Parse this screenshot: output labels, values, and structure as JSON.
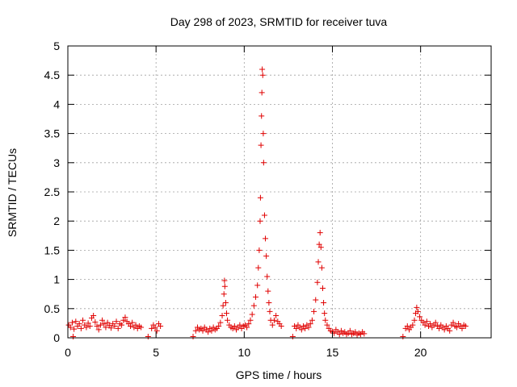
{
  "chart_data": {
    "type": "scatter",
    "title": "Day 298 of 2023, SRMTID for receiver tuva",
    "xlabel": "GPS time / hours",
    "ylabel": "SRMTID / TECUs",
    "xlim": [
      0,
      24
    ],
    "ylim": [
      0,
      5
    ],
    "x_ticks": [
      0,
      5,
      10,
      15,
      20
    ],
    "x_tick_labels": [
      "0",
      "5",
      "10",
      "15",
      "20"
    ],
    "y_ticks": [
      0,
      0.5,
      1,
      1.5,
      2,
      2.5,
      3,
      3.5,
      4,
      4.5,
      5
    ],
    "y_tick_labels": [
      "0",
      "0.5",
      "1",
      "1.5",
      "2",
      "2.5",
      "3",
      "3.5",
      "4",
      "4.5",
      "5"
    ],
    "grid": true,
    "marker": "+",
    "color": "#e00000",
    "series": [
      {
        "name": "SRMTID",
        "points": [
          [
            0.05,
            0.22
          ],
          [
            0.15,
            0.18
          ],
          [
            0.25,
            0.26
          ],
          [
            0.3,
            0.02
          ],
          [
            0.35,
            0.15
          ],
          [
            0.45,
            0.28
          ],
          [
            0.55,
            0.2
          ],
          [
            0.65,
            0.24
          ],
          [
            0.75,
            0.16
          ],
          [
            0.85,
            0.3
          ],
          [
            0.95,
            0.22
          ],
          [
            1.05,
            0.18
          ],
          [
            1.15,
            0.25
          ],
          [
            1.25,
            0.2
          ],
          [
            1.35,
            0.34
          ],
          [
            1.45,
            0.38
          ],
          [
            1.55,
            0.27
          ],
          [
            1.65,
            0.2
          ],
          [
            1.75,
            0.14
          ],
          [
            1.85,
            0.22
          ],
          [
            1.95,
            0.3
          ],
          [
            2.05,
            0.24
          ],
          [
            2.15,
            0.18
          ],
          [
            2.25,
            0.26
          ],
          [
            2.35,
            0.21
          ],
          [
            2.45,
            0.17
          ],
          [
            2.55,
            0.24
          ],
          [
            2.65,
            0.2
          ],
          [
            2.75,
            0.28
          ],
          [
            2.85,
            0.16
          ],
          [
            2.95,
            0.24
          ],
          [
            3.05,
            0.22
          ],
          [
            3.15,
            0.3
          ],
          [
            3.25,
            0.35
          ],
          [
            3.35,
            0.28
          ],
          [
            3.45,
            0.24
          ],
          [
            3.55,
            0.2
          ],
          [
            3.65,
            0.26
          ],
          [
            3.75,
            0.18
          ],
          [
            3.85,
            0.22
          ],
          [
            3.95,
            0.16
          ],
          [
            4.05,
            0.2
          ],
          [
            4.15,
            0.18
          ],
          [
            4.55,
            0.02
          ],
          [
            4.75,
            0.16
          ],
          [
            4.85,
            0.22
          ],
          [
            4.95,
            0.18
          ],
          [
            5.05,
            0.12
          ],
          [
            5.15,
            0.24
          ],
          [
            5.25,
            0.2
          ],
          [
            7.1,
            0.02
          ],
          [
            7.25,
            0.12
          ],
          [
            7.35,
            0.18
          ],
          [
            7.45,
            0.14
          ],
          [
            7.55,
            0.16
          ],
          [
            7.65,
            0.12
          ],
          [
            7.75,
            0.18
          ],
          [
            7.85,
            0.14
          ],
          [
            7.95,
            0.1
          ],
          [
            8.05,
            0.16
          ],
          [
            8.15,
            0.12
          ],
          [
            8.25,
            0.18
          ],
          [
            8.35,
            0.14
          ],
          [
            8.45,
            0.16
          ],
          [
            8.55,
            0.2
          ],
          [
            8.65,
            0.26
          ],
          [
            8.75,
            0.38
          ],
          [
            8.8,
            0.55
          ],
          [
            8.85,
            0.75
          ],
          [
            8.88,
            0.98
          ],
          [
            8.9,
            0.88
          ],
          [
            8.95,
            0.6
          ],
          [
            9.0,
            0.42
          ],
          [
            9.05,
            0.3
          ],
          [
            9.15,
            0.22
          ],
          [
            9.25,
            0.18
          ],
          [
            9.35,
            0.16
          ],
          [
            9.45,
            0.2
          ],
          [
            9.55,
            0.14
          ],
          [
            9.65,
            0.18
          ],
          [
            9.75,
            0.22
          ],
          [
            9.85,
            0.16
          ],
          [
            9.95,
            0.2
          ],
          [
            10.05,
            0.22
          ],
          [
            10.15,
            0.18
          ],
          [
            10.25,
            0.24
          ],
          [
            10.35,
            0.3
          ],
          [
            10.45,
            0.4
          ],
          [
            10.55,
            0.55
          ],
          [
            10.65,
            0.7
          ],
          [
            10.75,
            0.9
          ],
          [
            10.8,
            1.2
          ],
          [
            10.85,
            1.5
          ],
          [
            10.9,
            2.0
          ],
          [
            10.92,
            2.4
          ],
          [
            10.95,
            3.3
          ],
          [
            10.98,
            3.8
          ],
          [
            11.0,
            4.2
          ],
          [
            11.02,
            4.6
          ],
          [
            11.05,
            4.5
          ],
          [
            11.08,
            3.5
          ],
          [
            11.1,
            3.0
          ],
          [
            11.15,
            2.1
          ],
          [
            11.2,
            1.7
          ],
          [
            11.25,
            1.4
          ],
          [
            11.3,
            1.05
          ],
          [
            11.35,
            0.8
          ],
          [
            11.4,
            0.6
          ],
          [
            11.45,
            0.45
          ],
          [
            11.5,
            0.3
          ],
          [
            11.6,
            0.22
          ],
          [
            11.7,
            0.3
          ],
          [
            11.8,
            0.38
          ],
          [
            11.9,
            0.28
          ],
          [
            12.0,
            0.24
          ],
          [
            12.1,
            0.2
          ],
          [
            12.75,
            0.02
          ],
          [
            12.85,
            0.2
          ],
          [
            12.95,
            0.16
          ],
          [
            13.05,
            0.22
          ],
          [
            13.15,
            0.18
          ],
          [
            13.25,
            0.14
          ],
          [
            13.35,
            0.2
          ],
          [
            13.45,
            0.16
          ],
          [
            13.55,
            0.22
          ],
          [
            13.65,
            0.18
          ],
          [
            13.75,
            0.24
          ],
          [
            13.85,
            0.3
          ],
          [
            13.95,
            0.45
          ],
          [
            14.05,
            0.65
          ],
          [
            14.15,
            0.95
          ],
          [
            14.2,
            1.3
          ],
          [
            14.25,
            1.6
          ],
          [
            14.3,
            1.8
          ],
          [
            14.35,
            1.55
          ],
          [
            14.4,
            1.2
          ],
          [
            14.45,
            0.85
          ],
          [
            14.5,
            0.6
          ],
          [
            14.55,
            0.42
          ],
          [
            14.6,
            0.3
          ],
          [
            14.7,
            0.22
          ],
          [
            14.8,
            0.16
          ],
          [
            14.9,
            0.12
          ],
          [
            15.0,
            0.1
          ],
          [
            15.1,
            0.08
          ],
          [
            15.2,
            0.14
          ],
          [
            15.3,
            0.1
          ],
          [
            15.4,
            0.06
          ],
          [
            15.5,
            0.12
          ],
          [
            15.6,
            0.08
          ],
          [
            15.7,
            0.1
          ],
          [
            15.8,
            0.06
          ],
          [
            15.9,
            0.08
          ],
          [
            16.0,
            0.12
          ],
          [
            16.1,
            0.06
          ],
          [
            16.2,
            0.08
          ],
          [
            16.3,
            0.1
          ],
          [
            16.4,
            0.05
          ],
          [
            16.5,
            0.08
          ],
          [
            16.6,
            0.06
          ],
          [
            16.7,
            0.1
          ],
          [
            16.8,
            0.07
          ],
          [
            19.0,
            0.02
          ],
          [
            19.15,
            0.16
          ],
          [
            19.25,
            0.2
          ],
          [
            19.35,
            0.14
          ],
          [
            19.45,
            0.18
          ],
          [
            19.55,
            0.22
          ],
          [
            19.65,
            0.3
          ],
          [
            19.72,
            0.42
          ],
          [
            19.78,
            0.52
          ],
          [
            19.85,
            0.45
          ],
          [
            19.95,
            0.36
          ],
          [
            20.05,
            0.3
          ],
          [
            20.15,
            0.26
          ],
          [
            20.25,
            0.22
          ],
          [
            20.35,
            0.28
          ],
          [
            20.45,
            0.2
          ],
          [
            20.55,
            0.24
          ],
          [
            20.65,
            0.18
          ],
          [
            20.75,
            0.22
          ],
          [
            20.85,
            0.26
          ],
          [
            20.95,
            0.2
          ],
          [
            21.05,
            0.16
          ],
          [
            21.15,
            0.22
          ],
          [
            21.25,
            0.18
          ],
          [
            21.35,
            0.14
          ],
          [
            21.45,
            0.2
          ],
          [
            21.55,
            0.16
          ],
          [
            21.65,
            0.12
          ],
          [
            21.75,
            0.22
          ],
          [
            21.85,
            0.26
          ],
          [
            21.95,
            0.2
          ],
          [
            22.05,
            0.18
          ],
          [
            22.15,
            0.24
          ],
          [
            22.25,
            0.2
          ],
          [
            22.35,
            0.16
          ],
          [
            22.45,
            0.22
          ],
          [
            22.55,
            0.2
          ]
        ]
      }
    ]
  }
}
